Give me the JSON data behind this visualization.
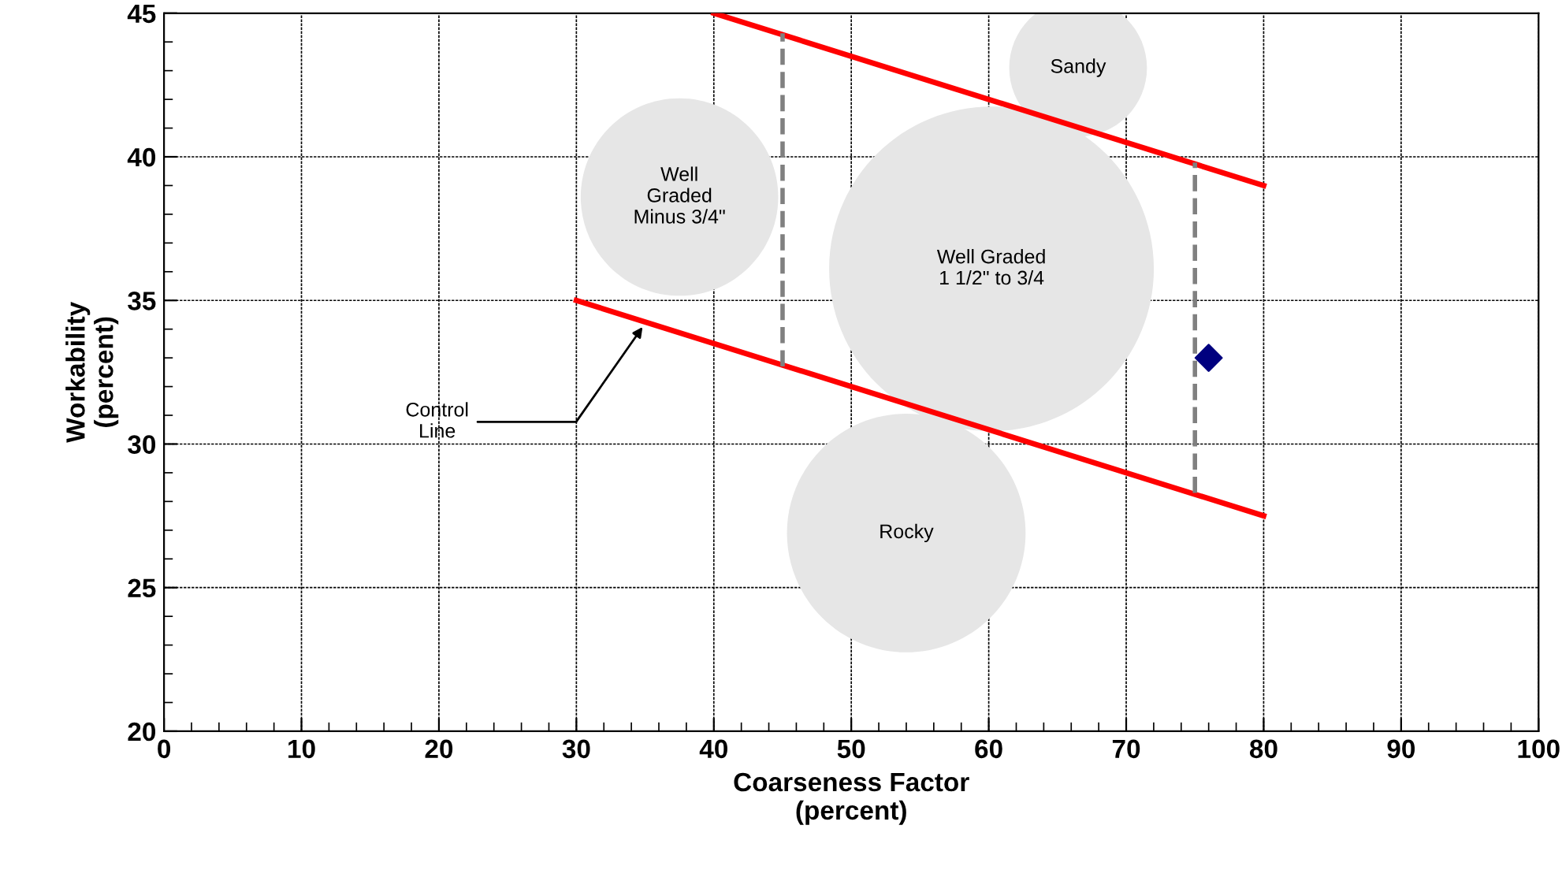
{
  "chart_data": {
    "type": "scatter",
    "xlabel": "Coarseness Factor\n(percent)",
    "ylabel": "Workability\n(percent)",
    "xlim": [
      0,
      100
    ],
    "ylim": [
      20,
      45
    ],
    "xticks": [
      0,
      {
        "value": 2,
        "label": null
      },
      {
        "value": 4,
        "label": null
      },
      {
        "value": 6,
        "label": null
      },
      {
        "value": 8,
        "label": null
      },
      10,
      {
        "value": 12,
        "label": null
      },
      {
        "value": 14,
        "label": null
      },
      {
        "value": 16,
        "label": null
      },
      {
        "value": 18,
        "label": null
      },
      20,
      {
        "value": 22,
        "label": null
      },
      {
        "value": 24,
        "label": null
      },
      {
        "value": 26,
        "label": null
      },
      {
        "value": 28,
        "label": null
      },
      30,
      {
        "value": 32,
        "label": null
      },
      {
        "value": 34,
        "label": null
      },
      {
        "value": 36,
        "label": null
      },
      {
        "value": 38,
        "label": null
      },
      40,
      {
        "value": 42,
        "label": null
      },
      {
        "value": 44,
        "label": null
      },
      {
        "value": 46,
        "label": null
      },
      {
        "value": 48,
        "label": null
      },
      50,
      {
        "value": 52,
        "label": null
      },
      {
        "value": 54,
        "label": null
      },
      {
        "value": 56,
        "label": null
      },
      {
        "value": 58,
        "label": null
      },
      60,
      {
        "value": 62,
        "label": null
      },
      {
        "value": 64,
        "label": null
      },
      {
        "value": 66,
        "label": null
      },
      {
        "value": 68,
        "label": null
      },
      70,
      {
        "value": 72,
        "label": null
      },
      {
        "value": 74,
        "label": null
      },
      {
        "value": 76,
        "label": null
      },
      {
        "value": 78,
        "label": null
      },
      80,
      {
        "value": 82,
        "label": null
      },
      {
        "value": 84,
        "label": null
      },
      {
        "value": 86,
        "label": null
      },
      {
        "value": 88,
        "label": null
      },
      90,
      {
        "value": 92,
        "label": null
      },
      {
        "value": 94,
        "label": null
      },
      {
        "value": 96,
        "label": null
      },
      {
        "value": 98,
        "label": null
      },
      100
    ],
    "yticks": [
      20,
      {
        "value": 21,
        "label": null
      },
      {
        "value": 22,
        "label": null
      },
      {
        "value": 23,
        "label": null
      },
      {
        "value": 24,
        "label": null
      },
      25,
      {
        "value": 26,
        "label": null
      },
      {
        "value": 27,
        "label": null
      },
      {
        "value": 28,
        "label": null
      },
      {
        "value": 29,
        "label": null
      },
      30,
      {
        "value": 31,
        "label": null
      },
      {
        "value": 32,
        "label": null
      },
      {
        "value": 33,
        "label": null
      },
      {
        "value": 34,
        "label": null
      },
      35,
      {
        "value": 36,
        "label": null
      },
      {
        "value": 37,
        "label": null
      },
      {
        "value": 38,
        "label": null
      },
      {
        "value": 39,
        "label": null
      },
      40,
      {
        "value": 41,
        "label": null
      },
      {
        "value": 42,
        "label": null
      },
      {
        "value": 43,
        "label": null
      },
      {
        "value": 44,
        "label": null
      },
      45
    ],
    "grid": true,
    "series": [
      {
        "type": "bubble",
        "color": "#e6e6e6",
        "x": [
          66.5,
          60.2,
          37.5,
          54
        ],
        "values": [
          43.1,
          36.1,
          38.6,
          26.9
        ],
        "sizes": [
          0.18,
          1,
          0.37,
          0.54
        ]
      },
      {
        "type": "line",
        "color": "#ff0000",
        "x": [
          40,
          80
        ],
        "values": [
          45,
          39
        ],
        "line_style": "solid",
        "marker": "none"
      },
      {
        "type": "line",
        "color": "#ff0000",
        "x": [
          30,
          80
        ],
        "values": [
          35,
          27.5
        ],
        "line_style": "solid",
        "marker": "none"
      },
      {
        "type": "line",
        "color": "#808080",
        "x": [
          45,
          45
        ],
        "values": [
          32.7,
          44.3
        ],
        "line_style": "dashed",
        "marker": "none"
      },
      {
        "type": "line",
        "color": "#808080",
        "x": [
          75,
          75
        ],
        "values": [
          28.3,
          39.8
        ],
        "line_style": "dashed",
        "marker": "none"
      },
      {
        "color": "#00007f",
        "x": [
          76
        ],
        "values": [
          33
        ],
        "marker": "diamond"
      }
    ],
    "annotations": [
      {
        "text": "Sandy",
        "x": 66.5,
        "y": 43.1
      },
      {
        "text": "Well Graded\n1 1/2\" to 3/4",
        "x": 60.2,
        "y": 36.1
      },
      {
        "text": "Well\nGraded\nMinus 3/4\"",
        "x": 37.5,
        "y": 38.6
      },
      {
        "text": "Rocky",
        "x": 54,
        "y": 26.9
      },
      {
        "text": "Control\nLine",
        "x": 35,
        "y": 34.2
      }
    ]
  }
}
